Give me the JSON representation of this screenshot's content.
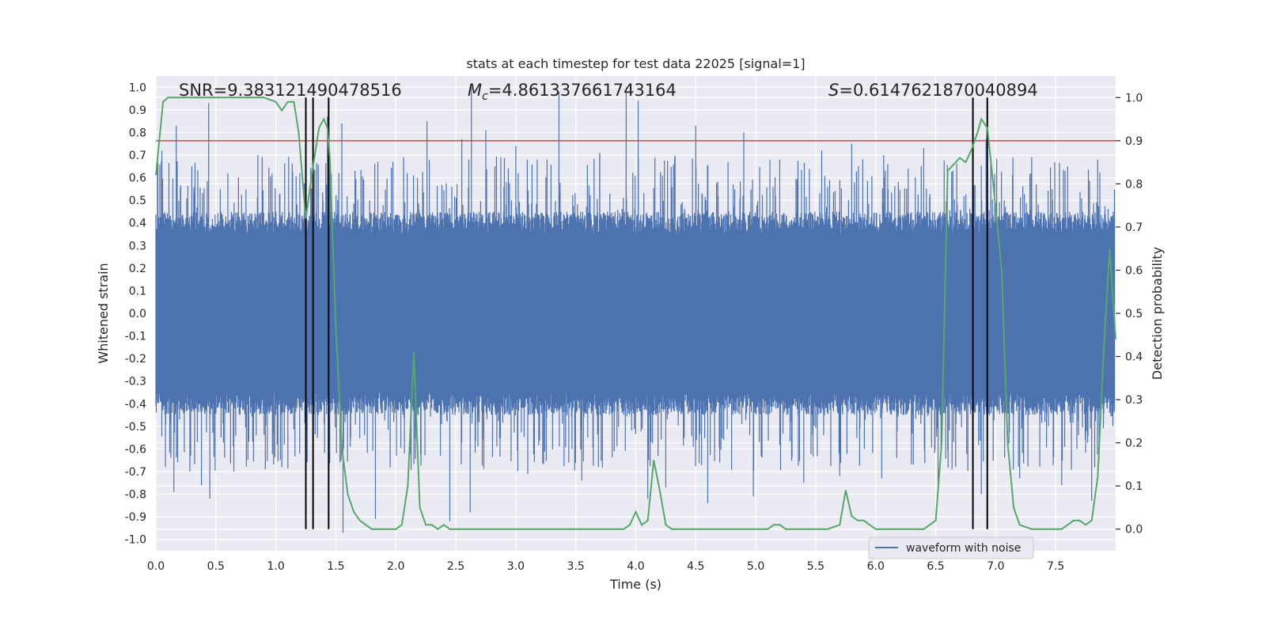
{
  "chart_data": {
    "type": "line",
    "title": "stats at each timestep for test data 22025 [signal=1]",
    "xlabel": "Time (s)",
    "ylabel_left": "Whitened strain",
    "ylabel_right": "Detection probability",
    "xlim": [
      0.0,
      8.0
    ],
    "ylim_left": [
      -1.05,
      1.05
    ],
    "ylim_right": [
      -0.05,
      1.05
    ],
    "x_ticks": [
      "0.0",
      "0.5",
      "1.0",
      "1.5",
      "2.0",
      "2.5",
      "3.0",
      "3.5",
      "4.0",
      "4.5",
      "5.0",
      "5.5",
      "6.0",
      "6.5",
      "7.0",
      "7.5"
    ],
    "y_ticks_left": [
      "-1.0",
      "-0.9",
      "-0.8",
      "-0.7",
      "-0.6",
      "-0.5",
      "-0.4",
      "-0.3",
      "-0.2",
      "-0.1",
      "0.0",
      "0.1",
      "0.2",
      "0.3",
      "0.4",
      "0.5",
      "0.6",
      "0.7",
      "0.8",
      "0.9",
      "1.0"
    ],
    "y_ticks_right": [
      "0.0",
      "0.1",
      "0.2",
      "0.3",
      "0.4",
      "0.5",
      "0.6",
      "0.7",
      "0.8",
      "0.9",
      "1.0"
    ],
    "grid": true,
    "legend_position": "lower-right",
    "annotations": {
      "snr_text": "SNR=9.383121490478516",
      "mc_symbol": "M",
      "mc_subscript": "c",
      "mc_value": "=4.861337661743164",
      "s_symbol": "S",
      "s_value": "=0.6147621870040894"
    },
    "threshold_right": 0.9,
    "vertical_lines_x": [
      1.25,
      1.31,
      1.44,
      6.81,
      6.93
    ],
    "series": [
      {
        "name": "waveform with noise",
        "axis": "left",
        "color": "#4c72b0",
        "style": "noise",
        "envelope_typical": 0.35,
        "peaks": [
          {
            "x": 0.05,
            "y": 0.72
          },
          {
            "x": 0.17,
            "y": 0.83
          },
          {
            "x": 0.3,
            "y": 0.65
          },
          {
            "x": 0.44,
            "y": 0.93
          },
          {
            "x": 0.6,
            "y": 0.62
          },
          {
            "x": 0.85,
            "y": 0.7
          },
          {
            "x": 1.2,
            "y": 0.62
          },
          {
            "x": 1.43,
            "y": 0.87
          },
          {
            "x": 1.55,
            "y": 0.84
          },
          {
            "x": 1.85,
            "y": 0.67
          },
          {
            "x": 2.26,
            "y": 0.85
          },
          {
            "x": 2.55,
            "y": 0.77
          },
          {
            "x": 2.63,
            "y": 1.0
          },
          {
            "x": 2.75,
            "y": 0.81
          },
          {
            "x": 3.0,
            "y": 0.74
          },
          {
            "x": 3.36,
            "y": 0.98
          },
          {
            "x": 3.7,
            "y": 0.71
          },
          {
            "x": 3.92,
            "y": 1.0
          },
          {
            "x": 4.02,
            "y": 0.94
          },
          {
            "x": 4.5,
            "y": 0.83
          },
          {
            "x": 4.9,
            "y": 0.8
          },
          {
            "x": 5.2,
            "y": 0.68
          },
          {
            "x": 5.55,
            "y": 0.72
          },
          {
            "x": 5.8,
            "y": 0.75
          },
          {
            "x": 6.1,
            "y": 0.66
          },
          {
            "x": 6.4,
            "y": 0.73
          },
          {
            "x": 6.92,
            "y": 0.77
          },
          {
            "x": 7.3,
            "y": 0.69
          },
          {
            "x": 7.6,
            "y": 0.65
          },
          {
            "x": 7.85,
            "y": 0.68
          },
          {
            "x": 0.08,
            "y": -0.68
          },
          {
            "x": 0.15,
            "y": -0.79
          },
          {
            "x": 0.38,
            "y": -0.76
          },
          {
            "x": 0.45,
            "y": -0.82
          },
          {
            "x": 0.65,
            "y": -0.7
          },
          {
            "x": 1.05,
            "y": -0.68
          },
          {
            "x": 1.56,
            "y": -0.97
          },
          {
            "x": 1.83,
            "y": -0.91
          },
          {
            "x": 2.45,
            "y": -0.92
          },
          {
            "x": 2.62,
            "y": -0.88
          },
          {
            "x": 3.1,
            "y": -0.71
          },
          {
            "x": 3.55,
            "y": -0.74
          },
          {
            "x": 4.1,
            "y": -0.82
          },
          {
            "x": 4.25,
            "y": -0.77
          },
          {
            "x": 4.6,
            "y": -0.84
          },
          {
            "x": 4.98,
            "y": -0.81
          },
          {
            "x": 5.4,
            "y": -0.75
          },
          {
            "x": 5.7,
            "y": -0.72
          },
          {
            "x": 6.05,
            "y": -0.73
          },
          {
            "x": 6.52,
            "y": -0.78
          },
          {
            "x": 6.88,
            "y": -0.8
          },
          {
            "x": 7.2,
            "y": -0.73
          },
          {
            "x": 7.55,
            "y": -0.76
          },
          {
            "x": 7.8,
            "y": -0.83
          }
        ]
      },
      {
        "name": "",
        "axis": "right",
        "color": "#55a868",
        "x": [
          0.0,
          0.06,
          0.1,
          0.15,
          0.3,
          0.5,
          0.7,
          0.9,
          1.0,
          1.05,
          1.1,
          1.15,
          1.19,
          1.25,
          1.31,
          1.36,
          1.4,
          1.43,
          1.45,
          1.5,
          1.55,
          1.6,
          1.65,
          1.7,
          1.75,
          1.8,
          1.9,
          2.0,
          2.05,
          2.1,
          2.15,
          2.2,
          2.25,
          2.3,
          2.35,
          2.4,
          2.45,
          2.5,
          2.6,
          2.7,
          2.8,
          3.0,
          3.2,
          3.4,
          3.6,
          3.8,
          3.9,
          3.95,
          4.0,
          4.05,
          4.1,
          4.15,
          4.2,
          4.25,
          4.3,
          4.35,
          4.4,
          4.5,
          4.6,
          4.8,
          5.0,
          5.1,
          5.15,
          5.2,
          5.25,
          5.4,
          5.5,
          5.6,
          5.7,
          5.75,
          5.8,
          5.85,
          5.9,
          5.95,
          6.0,
          6.05,
          6.1,
          6.2,
          6.3,
          6.4,
          6.5,
          6.55,
          6.6,
          6.7,
          6.75,
          6.8,
          6.85,
          6.88,
          6.93,
          6.98,
          7.05,
          7.1,
          7.15,
          7.2,
          7.3,
          7.4,
          7.5,
          7.55,
          7.6,
          7.65,
          7.7,
          7.75,
          7.8,
          7.85,
          7.9,
          7.95,
          8.0
        ],
        "y": [
          0.82,
          0.99,
          1.0,
          1.0,
          1.0,
          1.0,
          1.0,
          1.0,
          0.99,
          0.97,
          0.99,
          0.99,
          0.92,
          0.72,
          0.84,
          0.93,
          0.95,
          0.93,
          0.86,
          0.47,
          0.19,
          0.08,
          0.04,
          0.02,
          0.01,
          0.0,
          0.0,
          0.0,
          0.01,
          0.1,
          0.41,
          0.05,
          0.01,
          0.01,
          0.0,
          0.01,
          0.0,
          0.0,
          0.0,
          0.0,
          0.0,
          0.0,
          0.0,
          0.0,
          0.0,
          0.0,
          0.0,
          0.01,
          0.04,
          0.01,
          0.02,
          0.16,
          0.09,
          0.01,
          0.0,
          0.0,
          0.0,
          0.0,
          0.0,
          0.0,
          0.0,
          0.0,
          0.01,
          0.01,
          0.0,
          0.0,
          0.0,
          0.0,
          0.01,
          0.09,
          0.03,
          0.02,
          0.02,
          0.01,
          0.0,
          0.0,
          0.0,
          0.0,
          0.0,
          0.0,
          0.02,
          0.2,
          0.83,
          0.86,
          0.85,
          0.88,
          0.92,
          0.95,
          0.93,
          0.8,
          0.6,
          0.2,
          0.05,
          0.01,
          0.0,
          0.0,
          0.0,
          0.0,
          0.01,
          0.02,
          0.02,
          0.01,
          0.02,
          0.12,
          0.41,
          0.65,
          0.44
        ]
      }
    ]
  }
}
